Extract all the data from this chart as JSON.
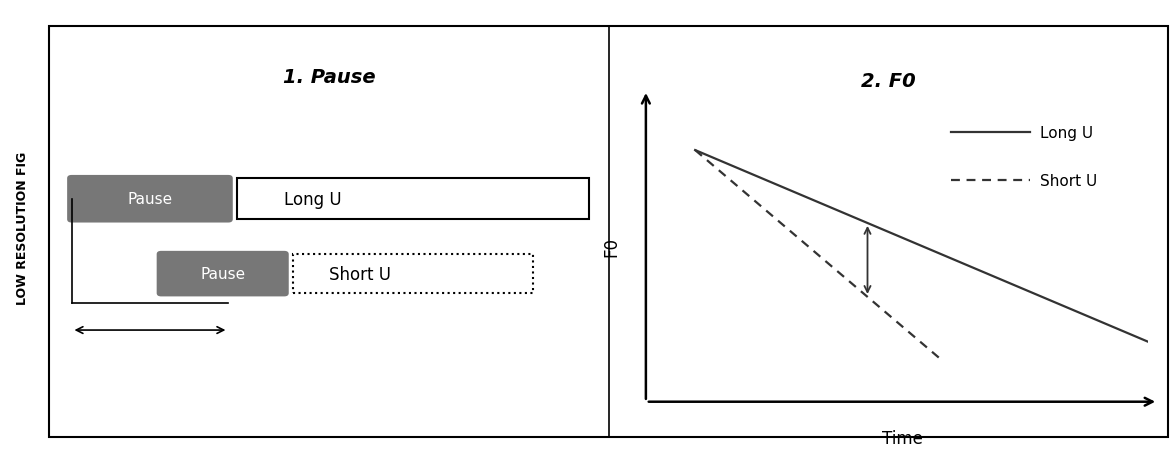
{
  "bg_color": "#ffffff",
  "sidebar_bg": "#d0d0d0",
  "sidebar_label": "LOW RESOLUTION FIG",
  "left_panel_title": "1. Pause",
  "right_panel_title": "2. F0",
  "pause_box_color": "#777777",
  "pause_text": "Pause",
  "long_u_label": "Long U",
  "short_u_label": "Short U",
  "legend_long_label": "Long U",
  "legend_short_label": "Short U",
  "f0_ylabel": "F0",
  "time_xlabel": "Time",
  "line_color": "#333333",
  "arrow_color": "#333333"
}
